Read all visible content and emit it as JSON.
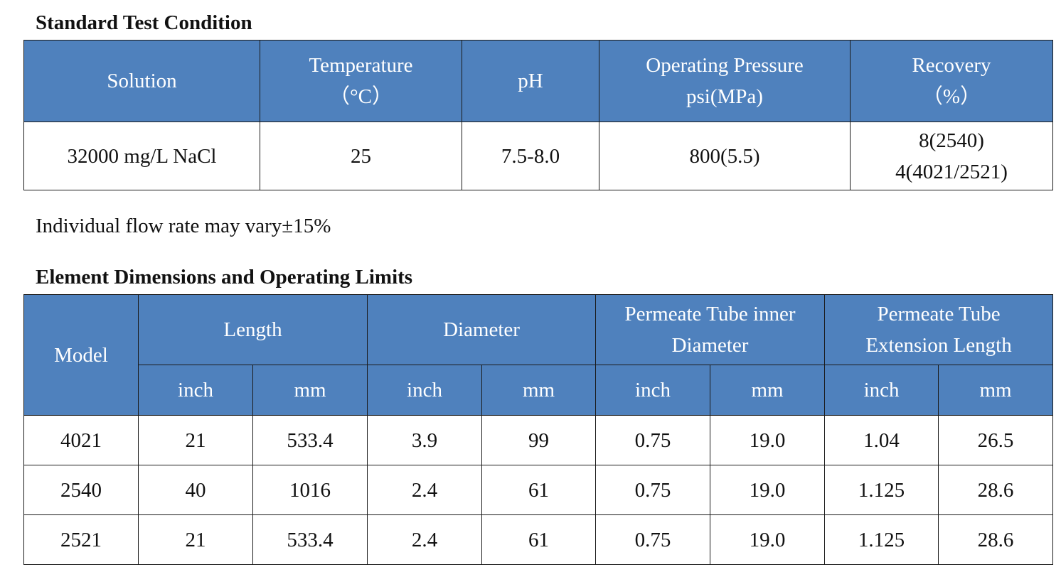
{
  "standard": {
    "title": "Standard Test Condition",
    "headers": {
      "solution": "Solution",
      "temperature": [
        "Temperature",
        "（°C）"
      ],
      "ph": "pH",
      "pressure": [
        "Operating Pressure",
        "psi(MPa)"
      ],
      "recovery": [
        "Recovery",
        "（%）"
      ]
    },
    "row": {
      "solution": "32000 mg/L NaCl",
      "temperature": "25",
      "ph": "7.5-8.0",
      "pressure": "800(5.5)",
      "recovery": [
        "8(2540)",
        "4(4021/2521)"
      ]
    }
  },
  "note": "Individual flow rate may vary±15%",
  "dimensions": {
    "title": "Element Dimensions and Operating Limits",
    "headers": {
      "model": "Model",
      "length": "Length",
      "diameter": "Diameter",
      "tube_inner": [
        "Permeate Tube inner",
        "Diameter"
      ],
      "tube_ext": [
        "Permeate Tube",
        "Extension Length"
      ],
      "inch": "inch",
      "mm": "mm"
    },
    "rows": [
      [
        "4021",
        "21",
        "533.4",
        "3.9",
        "99",
        "0.75",
        "19.0",
        "1.04",
        "26.5"
      ],
      [
        "2540",
        "40",
        "1016",
        "2.4",
        "61",
        "0.75",
        "19.0",
        "1.125",
        "28.6"
      ],
      [
        "2521",
        "21",
        "533.4",
        "2.4",
        "61",
        "0.75",
        "19.0",
        "1.125",
        "28.6"
      ]
    ]
  },
  "colors": {
    "header_bg": "#4f81bd",
    "header_text": "#ffffff",
    "border": "#1a1a1a"
  }
}
